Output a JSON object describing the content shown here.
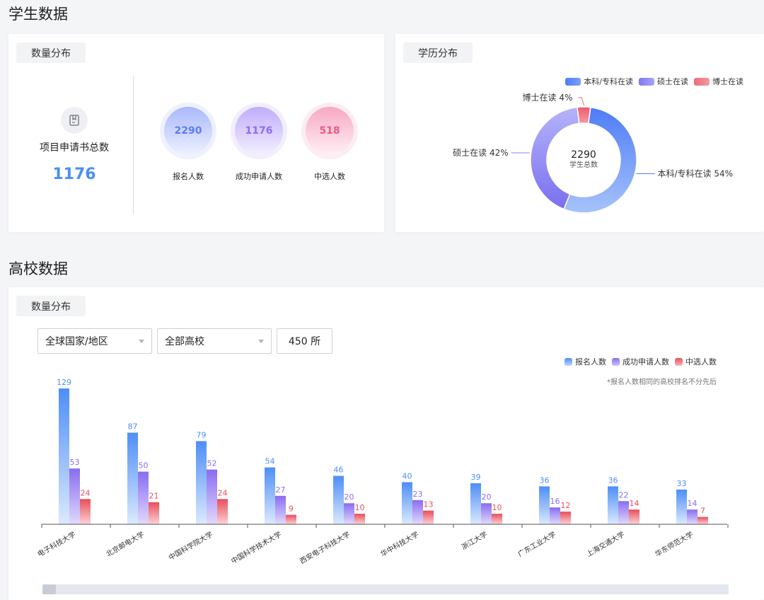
{
  "student_section": {
    "title": "学生数据",
    "quantity_card": {
      "tag": "数量分布",
      "total_label": "项目申请书总数",
      "total_value": "1176",
      "bubbles": [
        {
          "value": "2290",
          "label": "报名人数",
          "color": "#5b7df5"
        },
        {
          "value": "1176",
          "label": "成功申请人数",
          "color": "#8c6cf2"
        },
        {
          "value": "518",
          "label": "中选人数",
          "color": "#ee5a86"
        }
      ]
    },
    "education_card": {
      "tag": "学历分布",
      "chart_data": {
        "type": "pie",
        "center_value": "2290",
        "center_label": "学生总数",
        "legend_placement": "top-right",
        "slices": [
          {
            "name": "本科/专科在读",
            "value": 54,
            "label": "本科/专科在读 54%",
            "color": "#4e7cf6"
          },
          {
            "name": "硕士在读",
            "value": 42,
            "label": "硕士在读 42%",
            "color": "#8b86f6"
          },
          {
            "name": "博士在读",
            "value": 4,
            "label": "博士在读 4%",
            "color": "#ee6a78"
          }
        ]
      }
    }
  },
  "school_section": {
    "title": "高校数据",
    "card": {
      "tag": "数量分布",
      "filters": {
        "region": "全球国家/地区",
        "school": "全部高校",
        "count": "450 所"
      },
      "footnote": "*报名人数相同的高校排名不分先后",
      "chart_data": {
        "type": "bar",
        "legend_placement": "top-right",
        "categories": [
          "电子科技大学",
          "北京邮电大学",
          "中国科学院大学",
          "中国科学技术大学",
          "西安电子科技大学",
          "华中科技大学",
          "浙江大学",
          "广东工业大学",
          "上海交通大学",
          "华东师范大学"
        ],
        "series": [
          {
            "name": "报名人数",
            "color": "#4e8ef7",
            "values": [
              129,
              87,
              79,
              54,
              46,
              40,
              39,
              36,
              36,
              33
            ]
          },
          {
            "name": "成功申请人数",
            "color": "#8a6cf0",
            "values": [
              53,
              50,
              52,
              27,
              20,
              23,
              20,
              16,
              22,
              14
            ]
          },
          {
            "name": "中选人数",
            "color": "#e84e5a",
            "values": [
              24,
              21,
              24,
              9,
              10,
              13,
              10,
              12,
              14,
              7
            ]
          }
        ],
        "ylim": [
          0,
          129
        ]
      }
    }
  }
}
